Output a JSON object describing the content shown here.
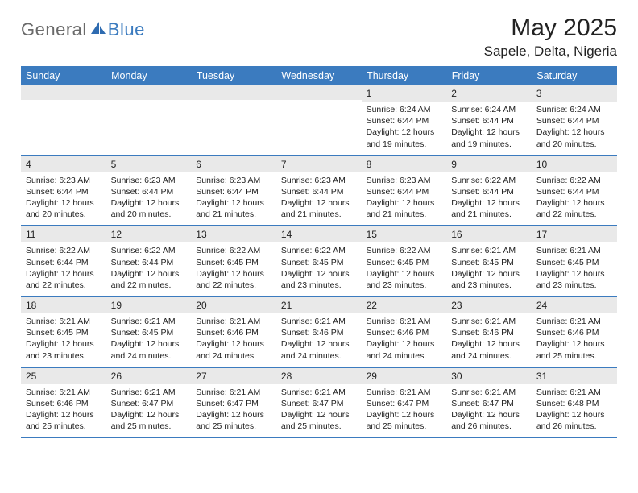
{
  "logo": {
    "general": "General",
    "blue": "Blue"
  },
  "title": "May 2025",
  "location": "Sapele, Delta, Nigeria",
  "colors": {
    "header_bg": "#3b7bbf",
    "band_bg": "#e9e9e9",
    "text": "#222222",
    "page_bg": "#ffffff",
    "logo_gray": "#6a6a6a"
  },
  "day_names": [
    "Sunday",
    "Monday",
    "Tuesday",
    "Wednesday",
    "Thursday",
    "Friday",
    "Saturday"
  ],
  "weeks": [
    [
      {
        "n": "",
        "sr": "",
        "ss": "",
        "d1": "",
        "d2": ""
      },
      {
        "n": "",
        "sr": "",
        "ss": "",
        "d1": "",
        "d2": ""
      },
      {
        "n": "",
        "sr": "",
        "ss": "",
        "d1": "",
        "d2": ""
      },
      {
        "n": "",
        "sr": "",
        "ss": "",
        "d1": "",
        "d2": ""
      },
      {
        "n": "1",
        "sr": "Sunrise: 6:24 AM",
        "ss": "Sunset: 6:44 PM",
        "d1": "Daylight: 12 hours",
        "d2": "and 19 minutes."
      },
      {
        "n": "2",
        "sr": "Sunrise: 6:24 AM",
        "ss": "Sunset: 6:44 PM",
        "d1": "Daylight: 12 hours",
        "d2": "and 19 minutes."
      },
      {
        "n": "3",
        "sr": "Sunrise: 6:24 AM",
        "ss": "Sunset: 6:44 PM",
        "d1": "Daylight: 12 hours",
        "d2": "and 20 minutes."
      }
    ],
    [
      {
        "n": "4",
        "sr": "Sunrise: 6:23 AM",
        "ss": "Sunset: 6:44 PM",
        "d1": "Daylight: 12 hours",
        "d2": "and 20 minutes."
      },
      {
        "n": "5",
        "sr": "Sunrise: 6:23 AM",
        "ss": "Sunset: 6:44 PM",
        "d1": "Daylight: 12 hours",
        "d2": "and 20 minutes."
      },
      {
        "n": "6",
        "sr": "Sunrise: 6:23 AM",
        "ss": "Sunset: 6:44 PM",
        "d1": "Daylight: 12 hours",
        "d2": "and 21 minutes."
      },
      {
        "n": "7",
        "sr": "Sunrise: 6:23 AM",
        "ss": "Sunset: 6:44 PM",
        "d1": "Daylight: 12 hours",
        "d2": "and 21 minutes."
      },
      {
        "n": "8",
        "sr": "Sunrise: 6:23 AM",
        "ss": "Sunset: 6:44 PM",
        "d1": "Daylight: 12 hours",
        "d2": "and 21 minutes."
      },
      {
        "n": "9",
        "sr": "Sunrise: 6:22 AM",
        "ss": "Sunset: 6:44 PM",
        "d1": "Daylight: 12 hours",
        "d2": "and 21 minutes."
      },
      {
        "n": "10",
        "sr": "Sunrise: 6:22 AM",
        "ss": "Sunset: 6:44 PM",
        "d1": "Daylight: 12 hours",
        "d2": "and 22 minutes."
      }
    ],
    [
      {
        "n": "11",
        "sr": "Sunrise: 6:22 AM",
        "ss": "Sunset: 6:44 PM",
        "d1": "Daylight: 12 hours",
        "d2": "and 22 minutes."
      },
      {
        "n": "12",
        "sr": "Sunrise: 6:22 AM",
        "ss": "Sunset: 6:44 PM",
        "d1": "Daylight: 12 hours",
        "d2": "and 22 minutes."
      },
      {
        "n": "13",
        "sr": "Sunrise: 6:22 AM",
        "ss": "Sunset: 6:45 PM",
        "d1": "Daylight: 12 hours",
        "d2": "and 22 minutes."
      },
      {
        "n": "14",
        "sr": "Sunrise: 6:22 AM",
        "ss": "Sunset: 6:45 PM",
        "d1": "Daylight: 12 hours",
        "d2": "and 23 minutes."
      },
      {
        "n": "15",
        "sr": "Sunrise: 6:22 AM",
        "ss": "Sunset: 6:45 PM",
        "d1": "Daylight: 12 hours",
        "d2": "and 23 minutes."
      },
      {
        "n": "16",
        "sr": "Sunrise: 6:21 AM",
        "ss": "Sunset: 6:45 PM",
        "d1": "Daylight: 12 hours",
        "d2": "and 23 minutes."
      },
      {
        "n": "17",
        "sr": "Sunrise: 6:21 AM",
        "ss": "Sunset: 6:45 PM",
        "d1": "Daylight: 12 hours",
        "d2": "and 23 minutes."
      }
    ],
    [
      {
        "n": "18",
        "sr": "Sunrise: 6:21 AM",
        "ss": "Sunset: 6:45 PM",
        "d1": "Daylight: 12 hours",
        "d2": "and 23 minutes."
      },
      {
        "n": "19",
        "sr": "Sunrise: 6:21 AM",
        "ss": "Sunset: 6:45 PM",
        "d1": "Daylight: 12 hours",
        "d2": "and 24 minutes."
      },
      {
        "n": "20",
        "sr": "Sunrise: 6:21 AM",
        "ss": "Sunset: 6:46 PM",
        "d1": "Daylight: 12 hours",
        "d2": "and 24 minutes."
      },
      {
        "n": "21",
        "sr": "Sunrise: 6:21 AM",
        "ss": "Sunset: 6:46 PM",
        "d1": "Daylight: 12 hours",
        "d2": "and 24 minutes."
      },
      {
        "n": "22",
        "sr": "Sunrise: 6:21 AM",
        "ss": "Sunset: 6:46 PM",
        "d1": "Daylight: 12 hours",
        "d2": "and 24 minutes."
      },
      {
        "n": "23",
        "sr": "Sunrise: 6:21 AM",
        "ss": "Sunset: 6:46 PM",
        "d1": "Daylight: 12 hours",
        "d2": "and 24 minutes."
      },
      {
        "n": "24",
        "sr": "Sunrise: 6:21 AM",
        "ss": "Sunset: 6:46 PM",
        "d1": "Daylight: 12 hours",
        "d2": "and 25 minutes."
      }
    ],
    [
      {
        "n": "25",
        "sr": "Sunrise: 6:21 AM",
        "ss": "Sunset: 6:46 PM",
        "d1": "Daylight: 12 hours",
        "d2": "and 25 minutes."
      },
      {
        "n": "26",
        "sr": "Sunrise: 6:21 AM",
        "ss": "Sunset: 6:47 PM",
        "d1": "Daylight: 12 hours",
        "d2": "and 25 minutes."
      },
      {
        "n": "27",
        "sr": "Sunrise: 6:21 AM",
        "ss": "Sunset: 6:47 PM",
        "d1": "Daylight: 12 hours",
        "d2": "and 25 minutes."
      },
      {
        "n": "28",
        "sr": "Sunrise: 6:21 AM",
        "ss": "Sunset: 6:47 PM",
        "d1": "Daylight: 12 hours",
        "d2": "and 25 minutes."
      },
      {
        "n": "29",
        "sr": "Sunrise: 6:21 AM",
        "ss": "Sunset: 6:47 PM",
        "d1": "Daylight: 12 hours",
        "d2": "and 25 minutes."
      },
      {
        "n": "30",
        "sr": "Sunrise: 6:21 AM",
        "ss": "Sunset: 6:47 PM",
        "d1": "Daylight: 12 hours",
        "d2": "and 26 minutes."
      },
      {
        "n": "31",
        "sr": "Sunrise: 6:21 AM",
        "ss": "Sunset: 6:48 PM",
        "d1": "Daylight: 12 hours",
        "d2": "and 26 minutes."
      }
    ]
  ]
}
